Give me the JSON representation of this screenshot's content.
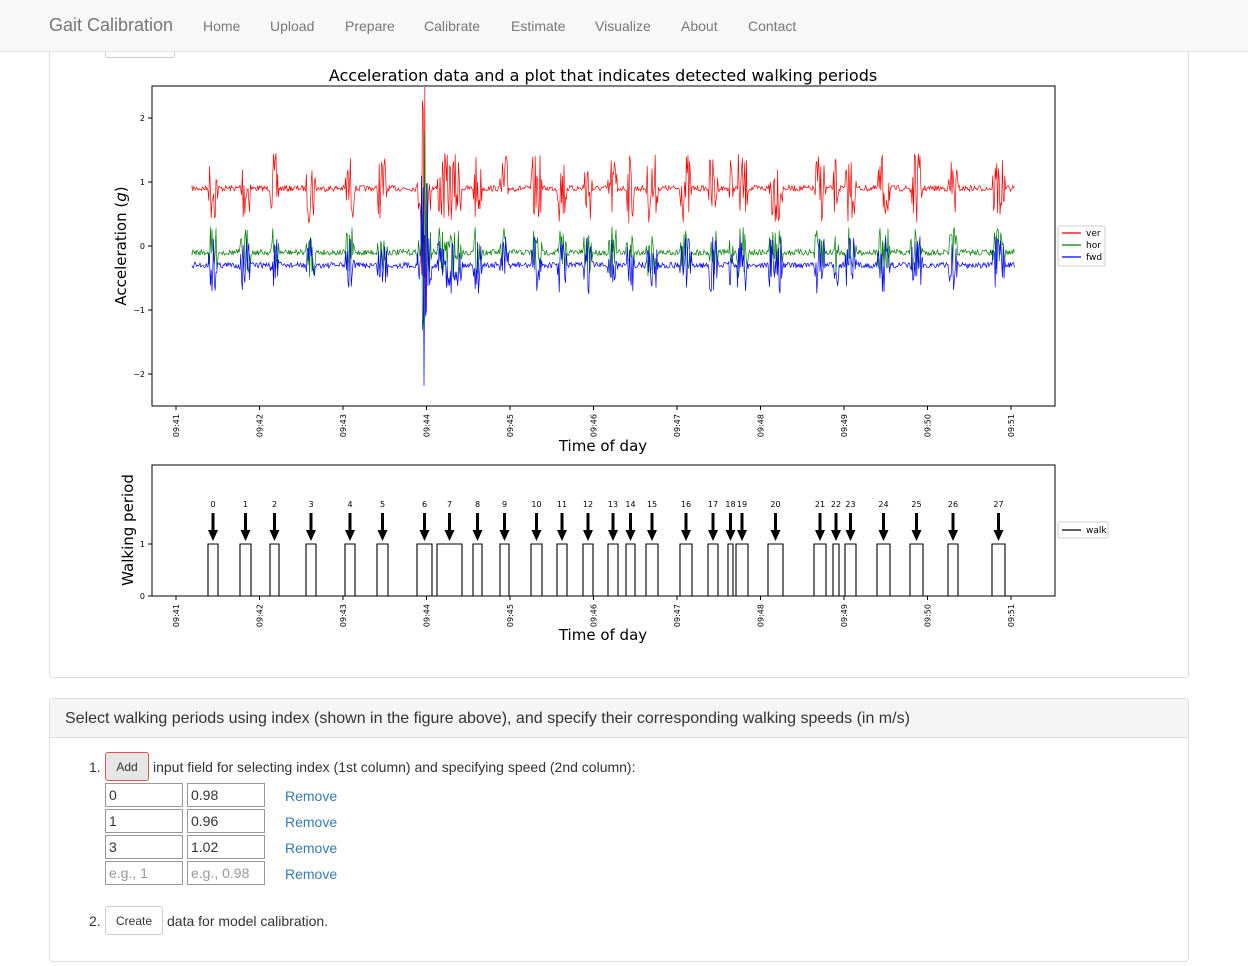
{
  "navbar": {
    "brand": "Gait Calibration",
    "items": [
      "Home",
      "Upload",
      "Prepare",
      "Calibrate",
      "Estimate",
      "Visualize",
      "About",
      "Contact"
    ]
  },
  "figure": {
    "title": "Acceleration data and a plot that indicates detected walking periods",
    "top_ylabel": "Acceleration (g)",
    "top_ylabel_main": "Acceleration (",
    "top_ylabel_var": "g",
    "top_ylabel_end": ")",
    "top_xlabel": "Time of day",
    "bottom_ylabel": "Walking period",
    "bottom_xlabel": "Time of day",
    "legend_top": [
      "ver",
      "hor",
      "fwd"
    ],
    "legend_bottom": [
      "walk"
    ]
  },
  "chart_data": [
    {
      "type": "line",
      "title": "Acceleration data and a plot that indicates detected walking periods",
      "xlabel": "Time of day",
      "ylabel": "Acceleration (g)",
      "x_ticks": [
        "09:41",
        "09:42",
        "09:43",
        "09:44",
        "09:45",
        "09:46",
        "09:47",
        "09:48",
        "09:49",
        "09:50",
        "09:51"
      ],
      "y_ticks": [
        "2",
        "1",
        "0",
        "−1",
        "−2"
      ],
      "ylim": [
        -2.5,
        2.5
      ],
      "legend_position": "right",
      "series": [
        {
          "name": "ver",
          "color": "#ff0000",
          "baseline": 0.9
        },
        {
          "name": "hor",
          "color": "#008000",
          "baseline": -0.1
        },
        {
          "name": "fwd",
          "color": "#0000ff",
          "baseline": -0.3
        }
      ]
    },
    {
      "type": "line",
      "xlabel": "Time of day",
      "ylabel": "Walking period",
      "x_ticks": [
        "09:41",
        "09:42",
        "09:43",
        "09:44",
        "09:45",
        "09:46",
        "09:47",
        "09:48",
        "09:49",
        "09:50",
        "09:51"
      ],
      "y_ticks": [
        "1",
        "0"
      ],
      "legend_position": "right",
      "series": [
        {
          "name": "walk",
          "color": "#000000"
        }
      ],
      "period_labels": [
        "0",
        "1",
        "2",
        "3",
        "4",
        "5",
        "6",
        "7",
        "8",
        "9",
        "10",
        "11",
        "12",
        "13",
        "14",
        "15",
        "16",
        "17",
        "18",
        "19",
        "20",
        "21",
        "22",
        "23",
        "24",
        "25",
        "26",
        "27"
      ]
    }
  ],
  "selection": {
    "title": "Select walking periods using index (shown in the figure above), and specify their corresponding walking speeds (in m/s)",
    "step1_num": "1.",
    "add_label": "Add",
    "step1_text": "input field for selecting index (1st column) and specifying speed (2nd column):",
    "rows": [
      {
        "index": "0",
        "speed": "0.98"
      },
      {
        "index": "1",
        "speed": "0.96"
      },
      {
        "index": "3",
        "speed": "1.02"
      }
    ],
    "placeholder_index": "e.g., 1",
    "placeholder_speed": "e.g., 0.98",
    "remove_label": "Remove",
    "step2_num": "2.",
    "create_label": "Create",
    "step2_text": "data for model calibration."
  }
}
